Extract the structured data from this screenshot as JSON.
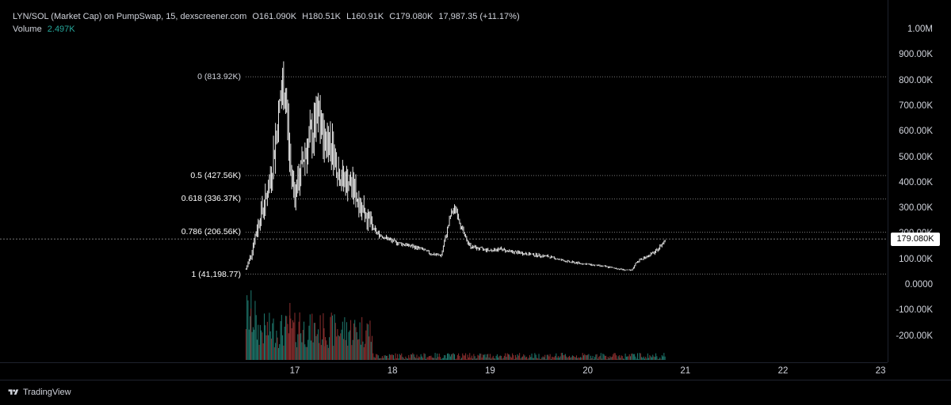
{
  "legend": {
    "title": "LYN/SOL (Market Cap) on PumpSwap, 15, dexscreener.com",
    "open": "O161.090K",
    "high": "H180.51K",
    "low": "L160.91K",
    "close": "C179.080K",
    "change": "17,987.35 (+11.17%)",
    "volume_label": "Volume",
    "volume_value": "2.497K"
  },
  "price_axis": {
    "labels": [
      "1.00M",
      "900.00K",
      "800.00K",
      "700.00K",
      "600.00K",
      "500.00K",
      "400.00K",
      "300.00K",
      "200.00K",
      "100.00K",
      "0.0000",
      "-100.00K",
      "-200.00K"
    ],
    "current_price": "179.080K"
  },
  "time_axis": {
    "labels": [
      "17",
      "18",
      "19",
      "20",
      "21",
      "22",
      "23"
    ]
  },
  "fib_levels": [
    {
      "label": "0 (813.92K)",
      "value": 813920
    },
    {
      "label": "0.5 (427.56K)",
      "value": 427560
    },
    {
      "label": "0.618 (336.37K)",
      "value": 336370
    },
    {
      "label": "0.786 (206.56K)",
      "value": 206560
    },
    {
      "label": "1 (41,198.77)",
      "value": 41198.77
    }
  ],
  "footer": {
    "brand": "TradingView"
  },
  "colors": {
    "up": "#26a69a",
    "down": "#ef5350",
    "candle": "#ffffff",
    "background": "#000000"
  },
  "chart_data": {
    "type": "line",
    "x": [
      16.5,
      16.55,
      16.6,
      16.65,
      16.7,
      16.75,
      16.8,
      16.85,
      16.9,
      16.95,
      17.0,
      17.05,
      17.1,
      17.15,
      17.2,
      17.25,
      17.3,
      17.35,
      17.4,
      17.45,
      17.5,
      17.55,
      17.6,
      17.65,
      17.7,
      17.75,
      17.8,
      17.85,
      17.9,
      17.95,
      18.0,
      18.1,
      18.2,
      18.3,
      18.4,
      18.5,
      18.6,
      18.65,
      18.7,
      18.75,
      18.8,
      18.9,
      19.0,
      19.1,
      19.2,
      19.4,
      19.6,
      19.8,
      20.0,
      20.2,
      20.35,
      20.45,
      20.5,
      20.6,
      20.7,
      20.8
    ],
    "y": [
      60000,
      120000,
      200000,
      280000,
      330000,
      420000,
      560000,
      720000,
      780000,
      480000,
      360000,
      420000,
      520000,
      560000,
      610000,
      650000,
      560000,
      580000,
      520000,
      440000,
      410000,
      400000,
      380000,
      330000,
      300000,
      260000,
      220000,
      200000,
      190000,
      180000,
      170000,
      160000,
      150000,
      140000,
      120000,
      115000,
      280000,
      300000,
      230000,
      180000,
      150000,
      140000,
      135000,
      140000,
      130000,
      120000,
      110000,
      90000,
      80000,
      70000,
      60000,
      55000,
      90000,
      110000,
      130000,
      179080
    ],
    "ylim": [
      -250000,
      1000000
    ],
    "xlim": [
      16.5,
      23.0
    ]
  }
}
